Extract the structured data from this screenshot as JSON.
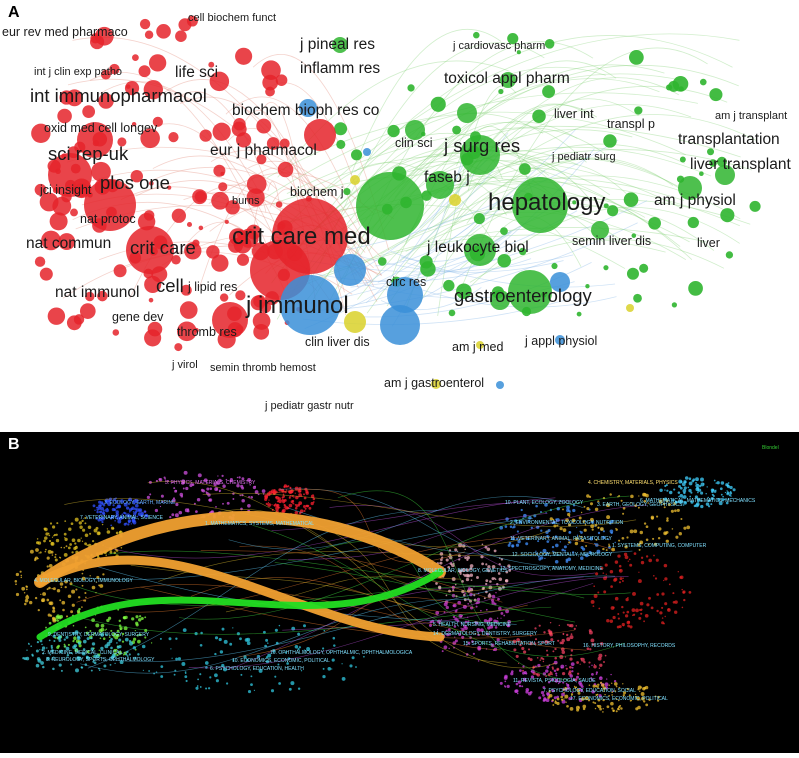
{
  "panel_a": {
    "letter": "A",
    "clusters": {
      "red": "#e5232a",
      "green": "#2fb52f",
      "blue": "#3a8fd8",
      "yellow": "#d9d12a"
    },
    "labels": [
      {
        "text": "eur rev med pharmaco",
        "cluster": "red",
        "size": "s"
      },
      {
        "text": "cell biochem funct",
        "cluster": "red",
        "size": "xs"
      },
      {
        "text": "int j clin exp patho",
        "cluster": "red",
        "size": "xs"
      },
      {
        "text": "life sci",
        "cluster": "red",
        "size": "m"
      },
      {
        "text": "int immunopharmacol",
        "cluster": "red",
        "size": "l"
      },
      {
        "text": "oxid med cell longev",
        "cluster": "red",
        "size": "s"
      },
      {
        "text": "sci rep-uk",
        "cluster": "red",
        "size": "l"
      },
      {
        "text": "eur j pharmacol",
        "cluster": "red",
        "size": "m"
      },
      {
        "text": "plos one",
        "cluster": "red",
        "size": "l"
      },
      {
        "text": "jci insight",
        "cluster": "red",
        "size": "s"
      },
      {
        "text": "nat protoc",
        "cluster": "red",
        "size": "s"
      },
      {
        "text": "burns",
        "cluster": "red",
        "size": "xs"
      },
      {
        "text": "biochem j",
        "cluster": "red",
        "size": "s"
      },
      {
        "text": "nat commun",
        "cluster": "red",
        "size": "m"
      },
      {
        "text": "crit care",
        "cluster": "red",
        "size": "l"
      },
      {
        "text": "crit care med",
        "cluster": "red",
        "size": "xl"
      },
      {
        "text": "cell",
        "cluster": "red",
        "size": "l"
      },
      {
        "text": "j lipid res",
        "cluster": "red",
        "size": "s"
      },
      {
        "text": "nat immunol",
        "cluster": "red",
        "size": "m"
      },
      {
        "text": "gene dev",
        "cluster": "red",
        "size": "s"
      },
      {
        "text": "thromb res",
        "cluster": "red",
        "size": "s"
      },
      {
        "text": "j virol",
        "cluster": "red",
        "size": "xs"
      },
      {
        "text": "semin thromb hemost",
        "cluster": "red",
        "size": "xs"
      },
      {
        "text": "j pediatr gastr nutr",
        "cluster": "red",
        "size": "xs"
      },
      {
        "text": "j immunol",
        "cluster": "blue",
        "size": "xl"
      },
      {
        "text": "biochem bioph res co",
        "cluster": "blue",
        "size": "m"
      },
      {
        "text": "circ res",
        "cluster": "blue",
        "size": "s"
      },
      {
        "text": "clin liver dis",
        "cluster": "blue",
        "size": "s"
      },
      {
        "text": "j appl physiol",
        "cluster": "blue",
        "size": "s"
      },
      {
        "text": "am j gastroenterol",
        "cluster": "yellow",
        "size": "s"
      },
      {
        "text": "am j med",
        "cluster": "yellow",
        "size": "s"
      },
      {
        "text": "j pineal res",
        "cluster": "green",
        "size": "m"
      },
      {
        "text": "inflamm res",
        "cluster": "green",
        "size": "m"
      },
      {
        "text": "j cardiovasc pharm",
        "cluster": "green",
        "size": "xs"
      },
      {
        "text": "toxicol appl pharm",
        "cluster": "green",
        "size": "m"
      },
      {
        "text": "am j transplant",
        "cluster": "green",
        "size": "xs"
      },
      {
        "text": "liver int",
        "cluster": "green",
        "size": "s"
      },
      {
        "text": "transpl p",
        "cluster": "green",
        "size": "s"
      },
      {
        "text": "clin sci",
        "cluster": "green",
        "size": "s"
      },
      {
        "text": "j surg res",
        "cluster": "green",
        "size": "l"
      },
      {
        "text": "transplantation",
        "cluster": "green",
        "size": "m"
      },
      {
        "text": "j pediatr surg",
        "cluster": "green",
        "size": "xs"
      },
      {
        "text": "liver transplant",
        "cluster": "green",
        "size": "m"
      },
      {
        "text": "faseb j",
        "cluster": "green",
        "size": "m"
      },
      {
        "text": "hepatology",
        "cluster": "green",
        "size": "xl"
      },
      {
        "text": "am j physiol",
        "cluster": "green",
        "size": "m"
      },
      {
        "text": "j leukocyte biol",
        "cluster": "green",
        "size": "m"
      },
      {
        "text": "semin liver dis",
        "cluster": "green",
        "size": "s"
      },
      {
        "text": "liver",
        "cluster": "green",
        "size": "s"
      },
      {
        "text": "gastroenterology",
        "cluster": "green",
        "size": "l"
      }
    ]
  },
  "panel_b": {
    "letter": "B",
    "legend_text": "Blondel",
    "left_labels": [
      {
        "text": "5. PHYSICS, MATERIALS, CHEMISTRY",
        "color": "#e070f0"
      },
      {
        "text": "3. ECOLOGY, EARTH, MARINE",
        "color": "#6ab0ff"
      },
      {
        "text": "7. VETERINARY, ANIMAL, SCIENCE",
        "color": "#80e0ff"
      },
      {
        "text": "1. MATHEMATICS, SYSTEMS, MATHEMATICAL",
        "color": "#80e0ff"
      },
      {
        "text": "4. MOLECULAR, BIOLOGY, IMMUNOLOGY",
        "color": "#80e0ff"
      },
      {
        "text": "9. DENTISTRY, DERMATOLOGY, SURGERY",
        "color": "#80e0ff"
      },
      {
        "text": "2. MEDICINE, MEDICAL, CLINICAL",
        "color": "#80e0ff"
      },
      {
        "text": "8. NEUROLOGY, SPORTS, OPHTHALMOLOGY",
        "color": "#80e0ff"
      },
      {
        "text": "10. ECONOMICS, ECONOMIC, POLITICAL",
        "color": "#80e0ff"
      },
      {
        "text": "6. PSYCHOLOGY, EDUCATION, HEALTH",
        "color": "#80e0ff"
      },
      {
        "text": "10. OPHTHALMOLOGY, OPHTHALMIC, OPHTHALMOLOGICA",
        "color": "#80e0ff"
      }
    ],
    "right_labels": [
      {
        "text": "4. CHEMISTRY, MATERIALS, PHYSICS",
        "color": "#ffe070"
      },
      {
        "text": "6. MATHEMATICAL, MATHEMATICS, MECHANICS",
        "color": "#80e0ff"
      },
      {
        "text": "10. PLANT, ECOLOGY, ZOOLOGY",
        "color": "#80e0ff"
      },
      {
        "text": "3. EARTH, GEOLOGY, GEOPHYSICS",
        "color": "#80e0ff"
      },
      {
        "text": "2. ENVIRONMENTAL, TOXICOLOGY, NUTRITION",
        "color": "#80e0ff"
      },
      {
        "text": "1. SYSTEMS, COMPUTING, COMPUTER",
        "color": "#80e0ff"
      },
      {
        "text": "11. VETERINARY, ANIMAL, PARASITOLOGY",
        "color": "#80e0ff"
      },
      {
        "text": "12. SOCIOLOGY, MENTALLY, NEUROLOGY",
        "color": "#80e0ff"
      },
      {
        "text": "8. MOLECULAR, BIOLOGY, GENETICS",
        "color": "#80e0ff"
      },
      {
        "text": "13. SPECTROSCOPY, ANATOMY, MEDICINE",
        "color": "#80e0ff"
      },
      {
        "text": "5. HEALTH, NURSING, MEDICINE",
        "color": "#80e0ff"
      },
      {
        "text": "14. DERMATOLOGY, DENTISTRY, SURGERY",
        "color": "#80e0ff"
      },
      {
        "text": "15. SPORTS, REHABILITATION, SPORT",
        "color": "#80e0ff"
      },
      {
        "text": "16. HISTORY, PHILOSOPHY, RECORDS",
        "color": "#80e0ff"
      },
      {
        "text": "11. REVISTA, PSICOLOGIA, SAUDE",
        "color": "#80e0ff"
      },
      {
        "text": "7. PSYCHOLOGY, EDUCATION, SOCIAL",
        "color": "#80e0ff"
      },
      {
        "text": "17. ECONOMICS, ECONOMIC, POLITICAL",
        "color": "#80e0ff"
      }
    ],
    "main_flows": [
      {
        "from": "4. MOLECULAR, BIOLOGY, IMMUNOLOGY",
        "to": "8. MOLECULAR, BIOLOGY, GENETICS",
        "color": "#f0a030"
      },
      {
        "from": "4. MOLECULAR, BIOLOGY, IMMUNOLOGY",
        "to": "5. HEALTH, NURSING, MEDICINE",
        "color": "#f0a030"
      },
      {
        "from": "2. MEDICINE, MEDICAL, CLINICAL",
        "to": "8. MOLECULAR, BIOLOGY, GENETICS",
        "color": "#22dd22"
      }
    ]
  }
}
